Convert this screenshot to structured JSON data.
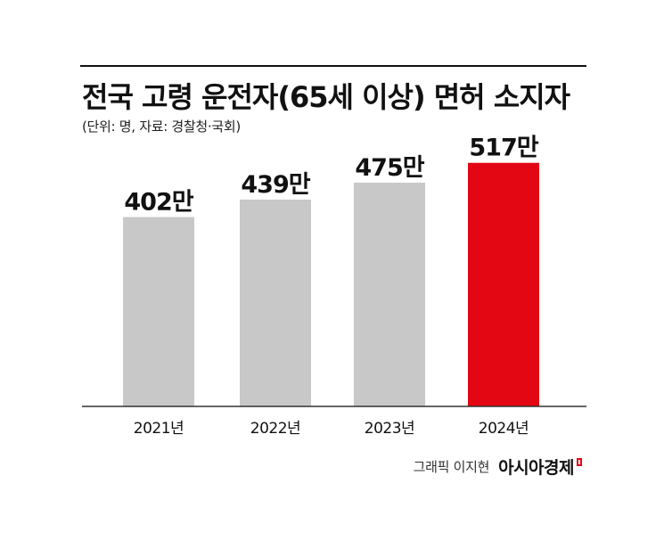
{
  "title": "전국 고령 운전자(65세 이상) 면허 소지자",
  "subtitle": "(단위: 명, 자료: 경찰청·국회)",
  "credit": "그래픽 이지현",
  "brand": "아시아경제",
  "colors": {
    "bar": "#c8c8c8",
    "highlight": "#e30613",
    "text": "#111111",
    "axis": "#333333"
  },
  "chart_data": {
    "type": "bar",
    "categories": [
      "2021년",
      "2022년",
      "2023년",
      "2024년"
    ],
    "values": [
      402,
      439,
      475,
      517
    ],
    "value_labels": [
      "402만",
      "439만",
      "475만",
      "517만"
    ],
    "unit": "만",
    "highlight_index": 3,
    "ylim": [
      0,
      560
    ],
    "grid": false,
    "legend": "none"
  }
}
